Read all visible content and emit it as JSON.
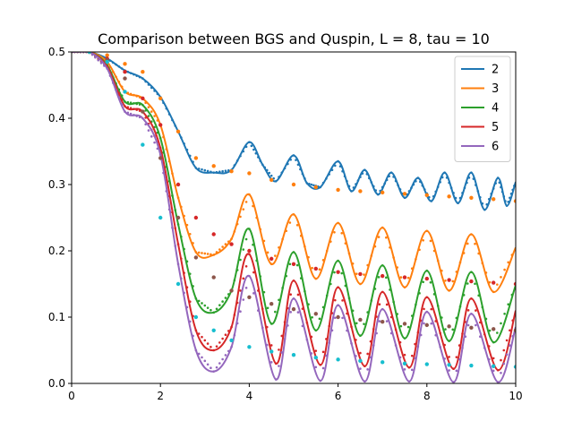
{
  "chart_data": {
    "type": "line",
    "title": "Comparison between BGS and Quspin, L = 8, tau = 10",
    "xlabel": "",
    "ylabel": "",
    "xlim": [
      0,
      10
    ],
    "ylim": [
      0,
      0.5
    ],
    "xticks": [
      "0",
      "2",
      "4",
      "6",
      "8",
      "10"
    ],
    "yticks": [
      "0.0",
      "0.1",
      "0.2",
      "0.3",
      "0.4",
      "0.5"
    ],
    "grid": false,
    "legend_position": "top-right",
    "series": [
      {
        "name": "2",
        "color": "#1f77b4",
        "style": "solid",
        "points": [
          [
            0,
            0.5
          ],
          [
            0.4,
            0.5
          ],
          [
            0.8,
            0.49
          ],
          [
            1.2,
            0.472
          ],
          [
            1.6,
            0.46
          ],
          [
            2.0,
            0.432
          ],
          [
            2.4,
            0.38
          ],
          [
            2.8,
            0.325
          ],
          [
            3.2,
            0.318
          ],
          [
            3.6,
            0.322
          ],
          [
            4.0,
            0.364
          ],
          [
            4.3,
            0.33
          ],
          [
            4.6,
            0.305
          ],
          [
            5.0,
            0.344
          ],
          [
            5.3,
            0.302
          ],
          [
            5.6,
            0.296
          ],
          [
            6.0,
            0.335
          ],
          [
            6.3,
            0.29
          ],
          [
            6.6,
            0.322
          ],
          [
            6.9,
            0.285
          ],
          [
            7.2,
            0.318
          ],
          [
            7.5,
            0.28
          ],
          [
            7.8,
            0.31
          ],
          [
            8.1,
            0.275
          ],
          [
            8.4,
            0.318
          ],
          [
            8.7,
            0.272
          ],
          [
            9.0,
            0.318
          ],
          [
            9.3,
            0.262
          ],
          [
            9.6,
            0.31
          ],
          [
            9.8,
            0.268
          ],
          [
            10.0,
            0.304
          ]
        ]
      },
      {
        "name": "3",
        "color": "#ff7f0e",
        "style": "solid",
        "points": [
          [
            0,
            0.5
          ],
          [
            0.4,
            0.5
          ],
          [
            0.8,
            0.485
          ],
          [
            1.2,
            0.44
          ],
          [
            1.6,
            0.43
          ],
          [
            2.0,
            0.39
          ],
          [
            2.4,
            0.28
          ],
          [
            2.8,
            0.198
          ],
          [
            3.2,
            0.194
          ],
          [
            3.6,
            0.218
          ],
          [
            4.0,
            0.285
          ],
          [
            4.5,
            0.18
          ],
          [
            5.0,
            0.255
          ],
          [
            5.5,
            0.158
          ],
          [
            6.0,
            0.242
          ],
          [
            6.5,
            0.15
          ],
          [
            7.0,
            0.235
          ],
          [
            7.5,
            0.145
          ],
          [
            8.0,
            0.23
          ],
          [
            8.5,
            0.14
          ],
          [
            9.0,
            0.225
          ],
          [
            9.5,
            0.138
          ],
          [
            10.0,
            0.205
          ]
        ]
      },
      {
        "name": "4",
        "color": "#2ca02c",
        "style": "solid",
        "points": [
          [
            0,
            0.5
          ],
          [
            0.4,
            0.5
          ],
          [
            0.8,
            0.48
          ],
          [
            1.2,
            0.425
          ],
          [
            1.6,
            0.42
          ],
          [
            2.0,
            0.37
          ],
          [
            2.4,
            0.24
          ],
          [
            2.8,
            0.128
          ],
          [
            3.2,
            0.107
          ],
          [
            3.6,
            0.14
          ],
          [
            4.0,
            0.233
          ],
          [
            4.5,
            0.09
          ],
          [
            5.0,
            0.198
          ],
          [
            5.5,
            0.08
          ],
          [
            6.0,
            0.185
          ],
          [
            6.5,
            0.072
          ],
          [
            7.0,
            0.178
          ],
          [
            7.5,
            0.068
          ],
          [
            8.0,
            0.17
          ],
          [
            8.5,
            0.064
          ],
          [
            9.0,
            0.168
          ],
          [
            9.5,
            0.062
          ],
          [
            10.0,
            0.148
          ]
        ]
      },
      {
        "name": "5",
        "color": "#d62728",
        "style": "solid",
        "points": [
          [
            0,
            0.5
          ],
          [
            0.4,
            0.5
          ],
          [
            0.8,
            0.478
          ],
          [
            1.2,
            0.418
          ],
          [
            1.6,
            0.41
          ],
          [
            2.0,
            0.355
          ],
          [
            2.4,
            0.21
          ],
          [
            2.8,
            0.08
          ],
          [
            3.2,
            0.05
          ],
          [
            3.6,
            0.085
          ],
          [
            4.0,
            0.195
          ],
          [
            4.6,
            0.03
          ],
          [
            5.0,
            0.155
          ],
          [
            5.6,
            0.028
          ],
          [
            6.0,
            0.145
          ],
          [
            6.6,
            0.026
          ],
          [
            7.0,
            0.138
          ],
          [
            7.6,
            0.024
          ],
          [
            8.0,
            0.13
          ],
          [
            8.6,
            0.022
          ],
          [
            9.0,
            0.128
          ],
          [
            9.6,
            0.02
          ],
          [
            10.0,
            0.11
          ]
        ]
      },
      {
        "name": "6",
        "color": "#9467bd",
        "style": "solid",
        "points": [
          [
            0,
            0.5
          ],
          [
            0.4,
            0.5
          ],
          [
            0.8,
            0.475
          ],
          [
            1.2,
            0.41
          ],
          [
            1.6,
            0.4
          ],
          [
            2.0,
            0.345
          ],
          [
            2.4,
            0.18
          ],
          [
            2.8,
            0.05
          ],
          [
            3.2,
            0.018
          ],
          [
            3.6,
            0.055
          ],
          [
            4.0,
            0.162
          ],
          [
            4.6,
            0.006
          ],
          [
            5.0,
            0.128
          ],
          [
            5.6,
            0.004
          ],
          [
            6.0,
            0.118
          ],
          [
            6.6,
            0.003
          ],
          [
            7.0,
            0.112
          ],
          [
            7.6,
            0.003
          ],
          [
            8.0,
            0.108
          ],
          [
            8.6,
            0.002
          ],
          [
            9.0,
            0.105
          ],
          [
            9.6,
            0.002
          ],
          [
            10.0,
            0.085
          ]
        ]
      },
      {
        "name": "",
        "color": "#ff7f0e",
        "style": "dots",
        "points": [
          [
            0.4,
            0.5
          ],
          [
            0.8,
            0.495
          ],
          [
            1.2,
            0.482
          ],
          [
            1.6,
            0.47
          ],
          [
            2.0,
            0.43
          ],
          [
            2.4,
            0.38
          ],
          [
            2.8,
            0.34
          ],
          [
            3.2,
            0.328
          ],
          [
            3.6,
            0.32
          ],
          [
            4.0,
            0.317
          ],
          [
            4.5,
            0.307
          ],
          [
            5.0,
            0.3
          ],
          [
            5.5,
            0.296
          ],
          [
            6.0,
            0.292
          ],
          [
            6.5,
            0.29
          ],
          [
            7.0,
            0.288
          ],
          [
            7.5,
            0.286
          ],
          [
            8.0,
            0.284
          ],
          [
            8.5,
            0.282
          ],
          [
            9.0,
            0.28
          ],
          [
            9.5,
            0.278
          ],
          [
            10.0,
            0.275
          ]
        ]
      },
      {
        "name": "",
        "color": "#d62728",
        "style": "dots",
        "points": [
          [
            0.4,
            0.5
          ],
          [
            0.8,
            0.49
          ],
          [
            1.2,
            0.47
          ],
          [
            1.6,
            0.43
          ],
          [
            2.0,
            0.39
          ],
          [
            2.4,
            0.3
          ],
          [
            2.8,
            0.25
          ],
          [
            3.2,
            0.225
          ],
          [
            3.6,
            0.21
          ],
          [
            4.0,
            0.2
          ],
          [
            4.5,
            0.188
          ],
          [
            5.0,
            0.18
          ],
          [
            5.5,
            0.173
          ],
          [
            6.0,
            0.168
          ],
          [
            6.5,
            0.165
          ],
          [
            7.0,
            0.162
          ],
          [
            7.5,
            0.16
          ],
          [
            8.0,
            0.158
          ],
          [
            8.5,
            0.156
          ],
          [
            9.0,
            0.154
          ],
          [
            9.5,
            0.152
          ],
          [
            10.0,
            0.15
          ]
        ]
      },
      {
        "name": "",
        "color": "#8c564b",
        "style": "dots",
        "points": [
          [
            0.4,
            0.5
          ],
          [
            0.8,
            0.488
          ],
          [
            1.2,
            0.46
          ],
          [
            1.6,
            0.41
          ],
          [
            2.0,
            0.34
          ],
          [
            2.4,
            0.25
          ],
          [
            2.8,
            0.19
          ],
          [
            3.2,
            0.16
          ],
          [
            3.6,
            0.14
          ],
          [
            4.0,
            0.13
          ],
          [
            4.5,
            0.12
          ],
          [
            5.0,
            0.112
          ],
          [
            5.5,
            0.105
          ],
          [
            6.0,
            0.1
          ],
          [
            6.5,
            0.096
          ],
          [
            7.0,
            0.093
          ],
          [
            7.5,
            0.09
          ],
          [
            8.0,
            0.088
          ],
          [
            8.5,
            0.086
          ],
          [
            9.0,
            0.084
          ],
          [
            9.5,
            0.082
          ],
          [
            10.0,
            0.08
          ]
        ]
      },
      {
        "name": "",
        "color": "#17becf",
        "style": "dots",
        "points": [
          [
            0.4,
            0.5
          ],
          [
            0.8,
            0.485
          ],
          [
            1.2,
            0.44
          ],
          [
            1.6,
            0.36
          ],
          [
            2.0,
            0.25
          ],
          [
            2.4,
            0.15
          ],
          [
            2.8,
            0.1
          ],
          [
            3.2,
            0.08
          ],
          [
            3.6,
            0.065
          ],
          [
            4.0,
            0.055
          ],
          [
            4.5,
            0.048
          ],
          [
            5.0,
            0.043
          ],
          [
            5.5,
            0.039
          ],
          [
            6.0,
            0.036
          ],
          [
            6.5,
            0.034
          ],
          [
            7.0,
            0.032
          ],
          [
            7.5,
            0.03
          ],
          [
            8.0,
            0.029
          ],
          [
            8.5,
            0.028
          ],
          [
            9.0,
            0.027
          ],
          [
            9.5,
            0.026
          ],
          [
            10.0,
            0.025
          ]
        ]
      }
    ]
  }
}
